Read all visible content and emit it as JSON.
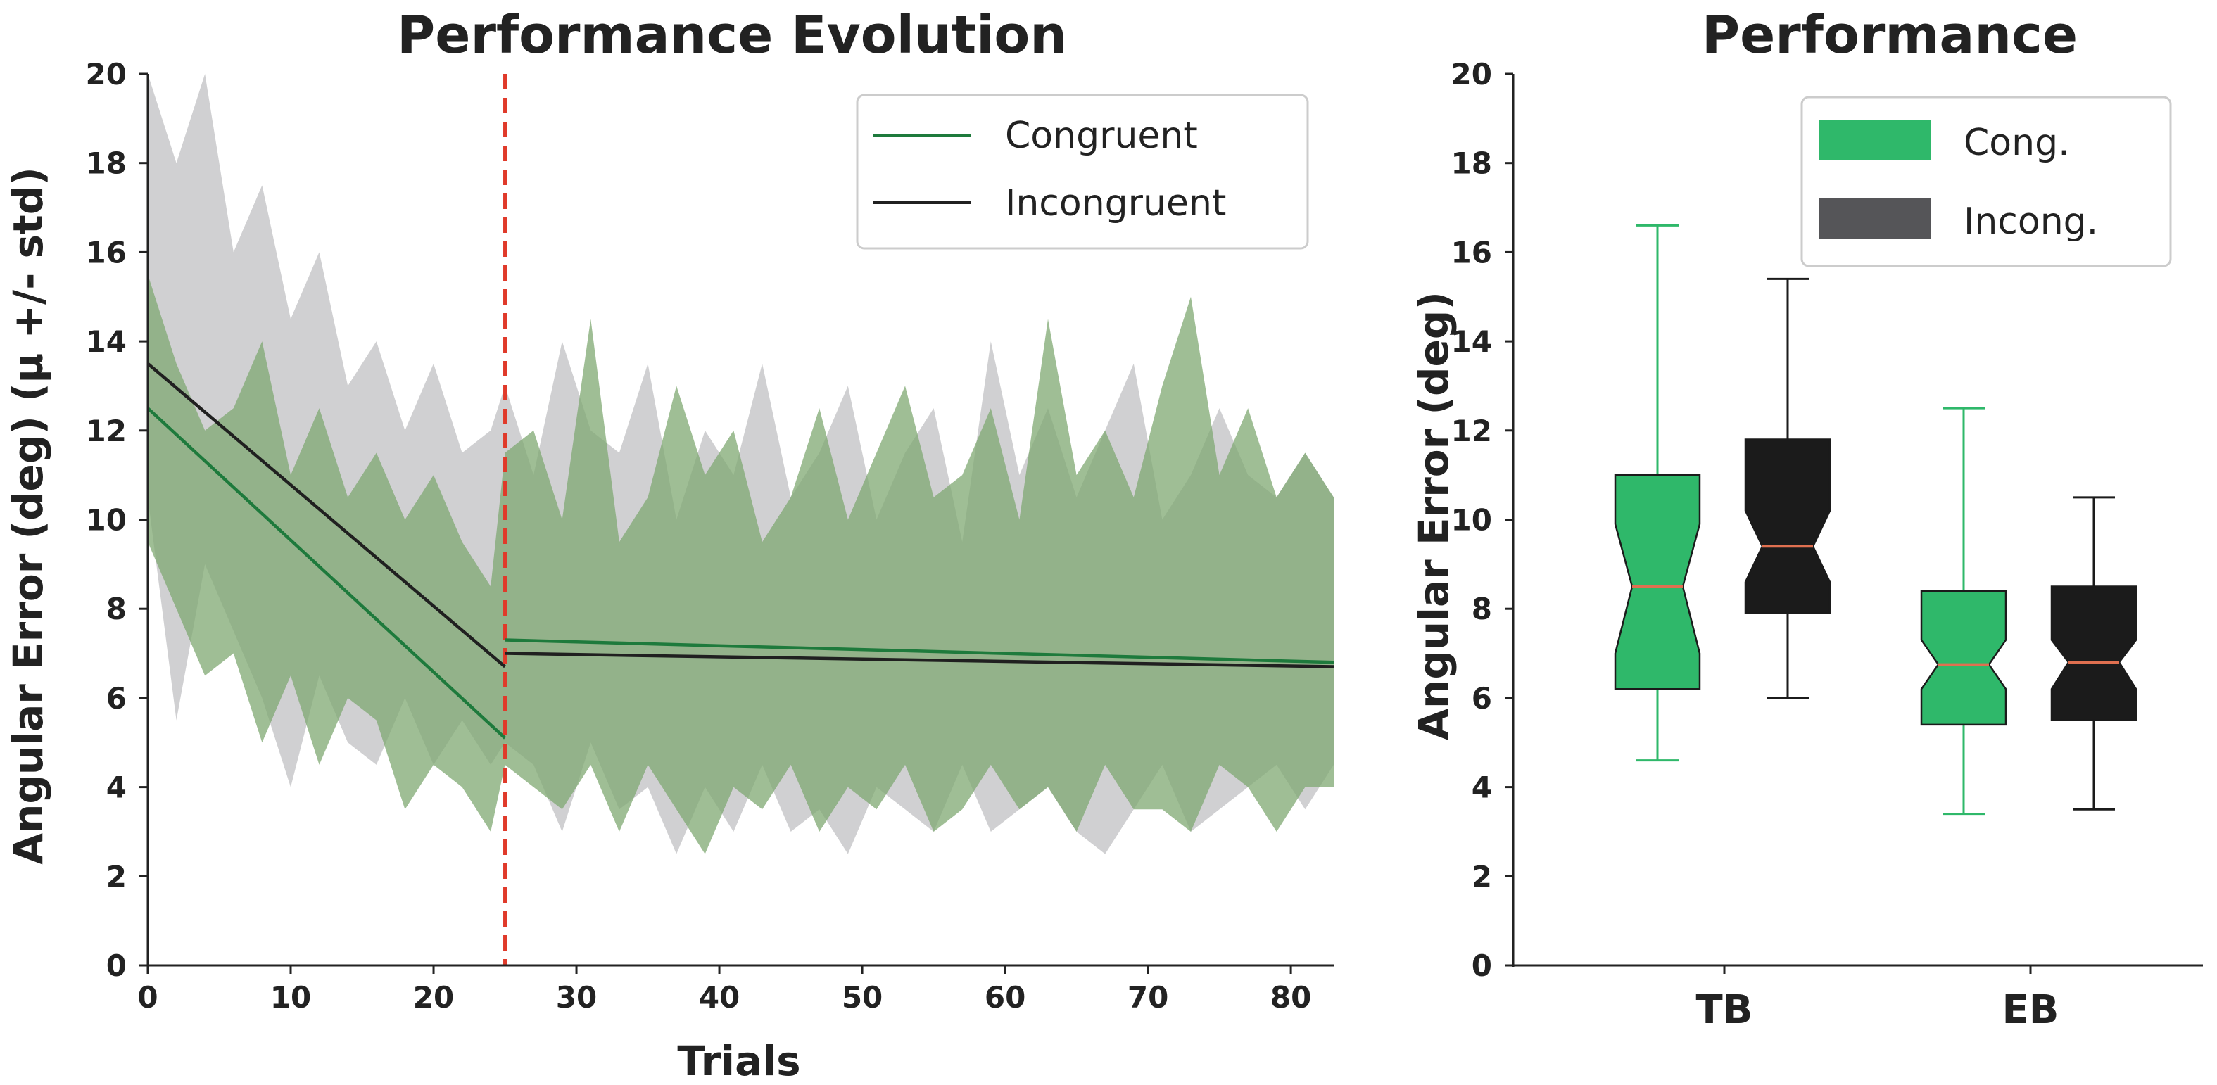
{
  "colors": {
    "congruent_line": "#1e7a3c",
    "incongruent_line": "#202020",
    "congruent_band": "#7fa871",
    "incongruent_band": "#a9aaad",
    "congruent_box": "#2fb86a",
    "incongruent_box": "#1b1b1b",
    "median": "#e07050",
    "divider": "#e03a2a"
  },
  "chart_data": [
    {
      "type": "line",
      "title": "Performance Evolution",
      "xlabel": "Trials",
      "ylabel": "Angular Error (deg) (µ +/- std)",
      "xlim": [
        0,
        83
      ],
      "ylim": [
        0,
        20
      ],
      "xticks": [
        0,
        10,
        20,
        30,
        40,
        50,
        60,
        70,
        80
      ],
      "yticks": [
        0,
        2,
        4,
        6,
        8,
        10,
        12,
        14,
        16,
        18,
        20
      ],
      "grid": false,
      "legend_position": "top-right",
      "vertical_marker": {
        "x": 25,
        "style": "dashed",
        "color": "#e03a2a"
      },
      "series": [
        {
          "name": "Congruent",
          "trend_segments": [
            {
              "x": [
                0,
                25
              ],
              "y": [
                12.5,
                5.1
              ]
            },
            {
              "x": [
                25,
                83
              ],
              "y": [
                7.3,
                6.8
              ]
            }
          ],
          "band": {
            "x": [
              0,
              2,
              4,
              6,
              8,
              10,
              12,
              14,
              16,
              18,
              20,
              22,
              24,
              25,
              27,
              29,
              31,
              33,
              35,
              37,
              39,
              41,
              43,
              45,
              47,
              49,
              51,
              53,
              55,
              57,
              59,
              61,
              63,
              65,
              67,
              69,
              71,
              73,
              75,
              77,
              79,
              81,
              83
            ],
            "upper": [
              15.5,
              13.5,
              12.0,
              12.5,
              14.0,
              11.0,
              12.5,
              10.5,
              11.5,
              10.0,
              11.0,
              9.5,
              8.5,
              11.5,
              12.0,
              10.0,
              14.5,
              9.5,
              10.5,
              13.0,
              11.0,
              12.0,
              9.5,
              10.5,
              12.5,
              10.0,
              11.5,
              13.0,
              10.5,
              11.0,
              12.5,
              10.0,
              14.5,
              11.0,
              12.0,
              10.5,
              13.0,
              15.0,
              11.0,
              12.5,
              10.5,
              11.5,
              10.5
            ],
            "lower": [
              9.5,
              8.0,
              6.5,
              7.0,
              5.0,
              6.5,
              4.5,
              6.0,
              5.5,
              3.5,
              4.5,
              4.0,
              3.0,
              4.5,
              4.0,
              3.5,
              4.5,
              3.0,
              4.5,
              3.5,
              2.5,
              4.0,
              3.5,
              4.5,
              3.0,
              4.0,
              3.5,
              4.5,
              3.0,
              3.5,
              4.5,
              3.5,
              4.0,
              3.0,
              4.5,
              3.5,
              3.5,
              3.0,
              4.5,
              4.0,
              3.0,
              4.0,
              4.0
            ]
          }
        },
        {
          "name": "Incongruent",
          "trend_segments": [
            {
              "x": [
                0,
                25
              ],
              "y": [
                13.5,
                6.7
              ]
            },
            {
              "x": [
                25,
                83
              ],
              "y": [
                7.0,
                6.7
              ]
            }
          ],
          "band": {
            "x": [
              0,
              2,
              4,
              6,
              8,
              10,
              12,
              14,
              16,
              18,
              20,
              22,
              24,
              25,
              27,
              29,
              31,
              33,
              35,
              37,
              39,
              41,
              43,
              45,
              47,
              49,
              51,
              53,
              55,
              57,
              59,
              61,
              63,
              65,
              67,
              69,
              71,
              73,
              75,
              77,
              79,
              81,
              83
            ],
            "upper": [
              20.0,
              18.0,
              20.0,
              16.0,
              17.5,
              14.5,
              16.0,
              13.0,
              14.0,
              12.0,
              13.5,
              11.5,
              12.0,
              13.0,
              11.0,
              14.0,
              12.0,
              11.5,
              13.5,
              10.0,
              12.0,
              11.0,
              13.5,
              10.5,
              11.5,
              13.0,
              10.0,
              11.5,
              12.5,
              9.5,
              14.0,
              11.0,
              12.5,
              10.5,
              12.0,
              13.5,
              10.0,
              11.0,
              12.5,
              11.0,
              10.5,
              11.5,
              10.5
            ],
            "lower": [
              10.5,
              5.5,
              9.0,
              7.5,
              6.0,
              4.0,
              6.5,
              5.0,
              4.5,
              6.0,
              4.5,
              5.5,
              4.5,
              5.0,
              4.5,
              3.0,
              5.0,
              3.5,
              4.0,
              2.5,
              4.0,
              3.0,
              4.5,
              3.0,
              3.5,
              2.5,
              4.0,
              3.5,
              3.0,
              4.5,
              3.0,
              3.5,
              4.0,
              3.0,
              2.5,
              3.5,
              4.5,
              3.0,
              3.5,
              4.0,
              4.5,
              3.5,
              4.5
            ]
          }
        }
      ]
    },
    {
      "type": "box",
      "title": "Performance",
      "xlabel": "",
      "ylabel": "Angular Error (deg)",
      "ylim": [
        0,
        20
      ],
      "yticks": [
        0,
        2,
        4,
        6,
        8,
        10,
        12,
        14,
        16,
        18,
        20
      ],
      "categories": [
        "TB",
        "EB"
      ],
      "notched": true,
      "grid": false,
      "legend_position": "top-right",
      "series": [
        {
          "name": "Cong.",
          "boxes": [
            {
              "category": "TB",
              "whisker_low": 4.6,
              "q1": 6.2,
              "notch_low": 7.0,
              "median": 8.5,
              "notch_high": 9.9,
              "q3": 11.0,
              "whisker_high": 16.6
            },
            {
              "category": "EB",
              "whisker_low": 3.4,
              "q1": 5.4,
              "notch_low": 6.2,
              "median": 6.75,
              "notch_high": 7.3,
              "q3": 8.4,
              "whisker_high": 12.5
            }
          ]
        },
        {
          "name": "Incong.",
          "boxes": [
            {
              "category": "TB",
              "whisker_low": 6.0,
              "q1": 7.9,
              "notch_low": 8.6,
              "median": 9.4,
              "notch_high": 10.2,
              "q3": 11.8,
              "whisker_high": 15.4
            },
            {
              "category": "EB",
              "whisker_low": 3.5,
              "q1": 5.5,
              "notch_low": 6.2,
              "median": 6.8,
              "notch_high": 7.3,
              "q3": 8.5,
              "whisker_high": 10.5
            }
          ]
        }
      ]
    }
  ]
}
